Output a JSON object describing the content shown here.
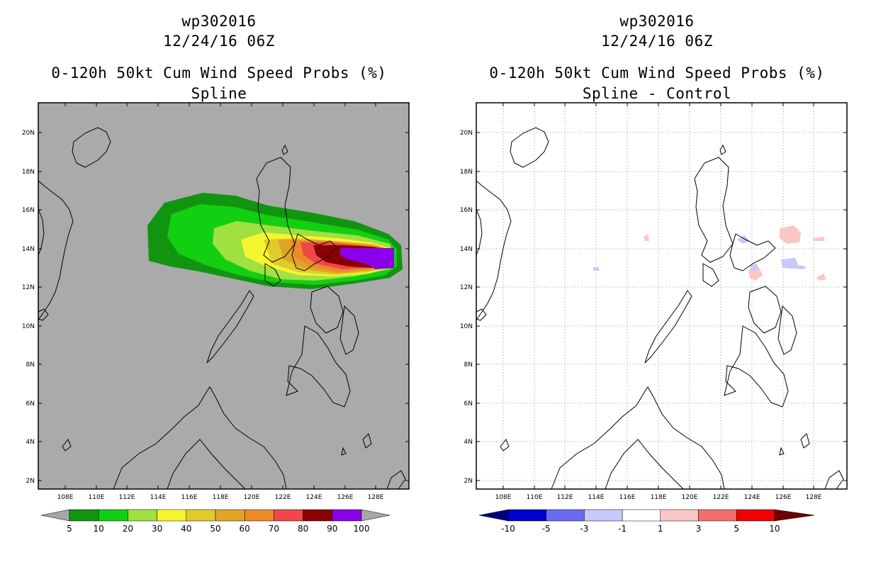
{
  "panels": [
    {
      "id": "left",
      "title_line1": "wp302016",
      "title_line2": "12/24/16 06Z",
      "title_line3": "0-120h 50kt Cum Wind Speed Probs (%)",
      "title_line4": "Spline",
      "background": "#aaaaaa",
      "colorbar": {
        "labels": [
          "5",
          "10",
          "20",
          "30",
          "40",
          "50",
          "60",
          "70",
          "80",
          "90",
          "100"
        ],
        "colors": [
          "#119511",
          "#12cf12",
          "#a0e040",
          "#f5f532",
          "#e1cb2a",
          "#e0a427",
          "#ec8a29",
          "#f04848",
          "#8a0000",
          "#8a00e8"
        ],
        "end_color": "#a6a6a6"
      }
    },
    {
      "id": "right",
      "title_line1": "wp302016",
      "title_line2": "12/24/16 06Z",
      "title_line3": "0-120h 50kt Cum Wind Speed Probs (%)",
      "title_line4": "Spline - Control",
      "background": "#ffffff",
      "colorbar": {
        "labels": [
          "-10",
          "-5",
          "-3",
          "-1",
          "1",
          "3",
          "5",
          "10"
        ],
        "colors": [
          "#0000cc",
          "#6b6bf0",
          "#c8c8fa",
          "#ffffff",
          "#fac6c6",
          "#f07070",
          "#f00000"
        ],
        "end_left": "#00007a",
        "end_right": "#6e0000"
      }
    }
  ],
  "axes": {
    "x_ticks": [
      "108E",
      "110E",
      "112E",
      "114E",
      "116E",
      "118E",
      "120E",
      "122E",
      "124E",
      "126E",
      "128E"
    ],
    "y_ticks": [
      "20N",
      "18N",
      "16N",
      "14N",
      "12N",
      "10N",
      "8N",
      "6N",
      "4N",
      "2N"
    ]
  }
}
